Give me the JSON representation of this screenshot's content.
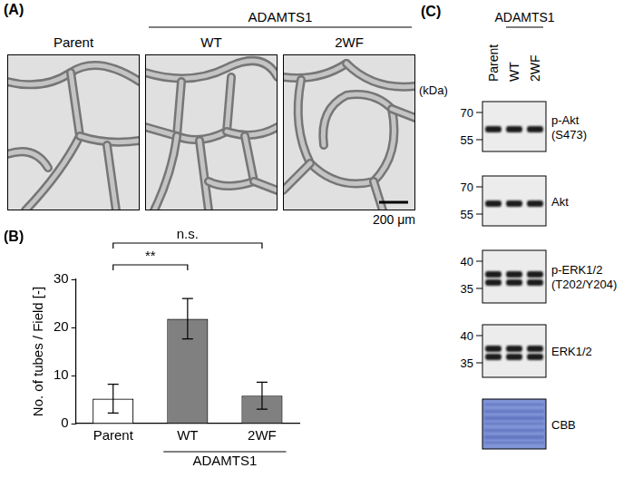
{
  "panel_a": {
    "panel": "(A)",
    "images": [
      "Parent",
      "WT",
      "2WF"
    ],
    "group": {
      "text": "ADAMTS1",
      "images": [
        "WT",
        "2WF"
      ]
    },
    "scale_bar": "200 μm"
  },
  "chart_data": {
    "panel": "(B)",
    "type": "bar",
    "categories": [
      "Parent",
      "WT",
      "2WF"
    ],
    "values": [
      5.2,
      21.8,
      5.8
    ],
    "errors": [
      3.0,
      4.2,
      2.8
    ],
    "colors": [
      "#ffffff",
      "#808080",
      "#808080"
    ],
    "y_label": "No. of tubes / Field [-]",
    "ylim": [
      0,
      30
    ],
    "yticks": [
      0,
      10,
      20,
      30
    ],
    "grid": false,
    "category_group": {
      "text": "ADAMTS1",
      "categories": [
        "WT",
        "2WF"
      ]
    },
    "annotations": [
      {
        "text": "**",
        "from": "Parent",
        "to": "WT"
      },
      {
        "text": "n.s.",
        "from": "Parent",
        "to": "2WF"
      }
    ]
  },
  "panel_c": {
    "panel": "(C)",
    "unit": "(kDa)",
    "lanes": [
      "Parent",
      "WT",
      "2WF"
    ],
    "group": {
      "text": "ADAMTS1",
      "lanes": [
        "WT",
        "2WF"
      ]
    },
    "blots": [
      {
        "label": "p-Akt",
        "detail": "(S473)",
        "markers": [
          70,
          55
        ]
      },
      {
        "label": "Akt",
        "markers": [
          70,
          55
        ]
      },
      {
        "label": "p-ERK1/2",
        "detail": "(T202/Y204)",
        "markers": [
          40,
          35
        ]
      },
      {
        "label": "ERK1/2",
        "markers": [
          40,
          35
        ]
      },
      {
        "label": "CBB",
        "markers": []
      }
    ]
  }
}
